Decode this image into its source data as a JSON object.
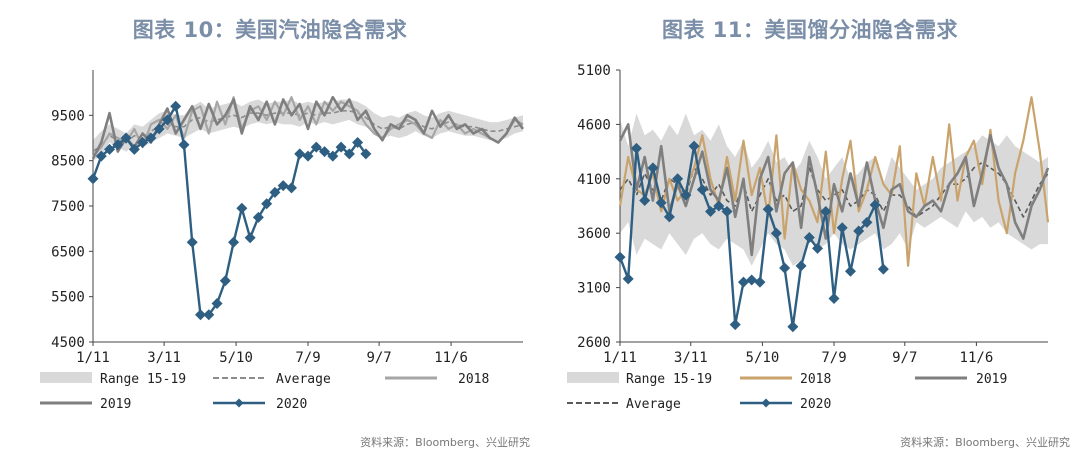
{
  "charts": [
    {
      "title": "图表 10：美国汽油隐含需求",
      "source": "资料来源：Bloomberg、兴业研究",
      "chart_data": {
        "type": "line",
        "title": "图表 10：美国汽油隐含需求",
        "ylim": [
          4500,
          10500
        ],
        "yticks": [
          "9500",
          "8500",
          "7500",
          "6500",
          "5500",
          "4500"
        ],
        "ytick_values": [
          9500,
          8500,
          7500,
          6500,
          5500,
          4500
        ],
        "xticks": [
          "1/11",
          "3/11",
          "5/10",
          "7/9",
          "9/7",
          "11/6"
        ],
        "xtick_weeks": [
          1,
          9.6,
          18.3,
          27,
          35.6,
          44.3
        ],
        "weeks": 53,
        "legend": {
          "range": "Range 15-19",
          "average": "Average",
          "y2018": "2018",
          "y2019": "2019",
          "y2020": "2020"
        },
        "colors": {
          "range": "#d9d9d9",
          "average": "#8c8c8c",
          "y2018": "#a6a6a6",
          "y2019": "#7f7f7f",
          "y2020": "#2e5f82"
        },
        "band_low": [
          8500,
          8600,
          8900,
          8800,
          8700,
          8850,
          8800,
          8900,
          9000,
          9100,
          9050,
          9000,
          9100,
          9200,
          9100,
          9150,
          9200,
          9250,
          9200,
          9300,
          9350,
          9300,
          9350,
          9300,
          9300,
          9250,
          9350,
          9300,
          9350,
          9300,
          9350,
          9400,
          9300,
          9250,
          9100,
          9000,
          9050,
          9000,
          9050,
          9150,
          9050,
          9000,
          9100,
          9150,
          9100,
          9050,
          9050,
          9000,
          8950,
          8950,
          9000,
          9100,
          9150
        ],
        "band_high": [
          8950,
          9150,
          9300,
          9200,
          9100,
          9300,
          9250,
          9400,
          9550,
          9600,
          9500,
          9500,
          9700,
          9800,
          9650,
          9700,
          9750,
          9800,
          9700,
          9800,
          9850,
          9750,
          9800,
          9800,
          9850,
          9750,
          9800,
          9750,
          9800,
          9800,
          9850,
          9850,
          9800,
          9700,
          9550,
          9450,
          9500,
          9450,
          9550,
          9600,
          9500,
          9450,
          9550,
          9600,
          9550,
          9500,
          9450,
          9400,
          9350,
          9350,
          9400,
          9450,
          9500
        ],
        "average": [
          8700,
          8850,
          9050,
          8950,
          8900,
          9050,
          9000,
          9150,
          9250,
          9300,
          9250,
          9250,
          9400,
          9450,
          9350,
          9400,
          9450,
          9500,
          9450,
          9550,
          9550,
          9500,
          9550,
          9550,
          9550,
          9500,
          9550,
          9500,
          9550,
          9550,
          9600,
          9600,
          9550,
          9450,
          9300,
          9200,
          9250,
          9200,
          9300,
          9350,
          9250,
          9200,
          9300,
          9350,
          9300,
          9250,
          9250,
          9200,
          9150,
          9150,
          9200,
          9250,
          9300
        ],
        "series_2018": [
          8600,
          8800,
          9100,
          9000,
          8900,
          9200,
          8800,
          9300,
          9400,
          9200,
          9500,
          9000,
          9600,
          9700,
          9100,
          9800,
          9300,
          9900,
          9200,
          9600,
          9700,
          9400,
          9800,
          9500,
          9900,
          9400,
          9700,
          9300,
          9800,
          9600,
          9800,
          9700,
          9600,
          9300,
          9100,
          9000,
          9200,
          9300,
          9400,
          9300,
          9100,
          9000,
          9400,
          9200,
          9300,
          9100,
          9200,
          9100,
          9000,
          8900,
          9100,
          9400,
          9300
        ],
        "series_2019": [
          8550,
          8900,
          9550,
          8700,
          9000,
          8800,
          9100,
          8900,
          9300,
          9650,
          9100,
          9400,
          9700,
          9200,
          9750,
          9300,
          9500,
          9850,
          9100,
          9700,
          9400,
          9800,
          9300,
          9850,
          9500,
          9750,
          9200,
          9800,
          9500,
          9900,
          9600,
          9850,
          9400,
          9600,
          9200,
          8950,
          9300,
          9200,
          9500,
          9400,
          9100,
          9600,
          9250,
          9500,
          9200,
          9300,
          9100,
          9200,
          9000,
          8900,
          9100,
          9450,
          9200
        ],
        "series_2020": [
          8100,
          8600,
          8750,
          8850,
          9000,
          8750,
          8900,
          9000,
          9200,
          9400,
          9700,
          8850,
          6700,
          5100,
          5100,
          5350,
          5850,
          6700,
          7450,
          6800,
          7250,
          7550,
          7800,
          7950,
          7900,
          8650,
          8600,
          8800,
          8700,
          8600,
          8800,
          8650,
          8900,
          8650
        ]
      }
    },
    {
      "title": "图表 11：美国馏分油隐含需求",
      "source": "资料来源：Bloomberg、兴业研究",
      "chart_data": {
        "type": "line",
        "title": "图表 11：美国馏分油隐含需求",
        "ylim": [
          2600,
          5100
        ],
        "yticks": [
          "5100",
          "4600",
          "4100",
          "3600",
          "3100",
          "2600"
        ],
        "ytick_values": [
          5100,
          4600,
          4100,
          3600,
          3100,
          2600
        ],
        "xticks": [
          "1/11",
          "3/11",
          "5/10",
          "7/9",
          "9/7",
          "11/6"
        ],
        "xtick_weeks": [
          1,
          9.6,
          18.3,
          27,
          35.6,
          44.3
        ],
        "weeks": 53,
        "legend": {
          "range": "Range 15-19",
          "y2018": "2018",
          "y2019": "2019",
          "average": "Average",
          "y2020": "2020"
        },
        "colors": {
          "range": "#d9d9d9",
          "average": "#595959",
          "y2018": "#c9a36b",
          "y2019": "#7f7f7f",
          "y2020": "#2e5f82"
        },
        "band_low": [
          3600,
          3700,
          3400,
          3550,
          3500,
          3450,
          3600,
          3500,
          3400,
          3550,
          3600,
          3500,
          3450,
          3550,
          3500,
          3450,
          3300,
          3450,
          3600,
          3500,
          3450,
          3300,
          3350,
          3550,
          3450,
          3500,
          3600,
          3500,
          3450,
          3500,
          3550,
          3600,
          3450,
          3500,
          3600,
          3450,
          3700,
          3650,
          3700,
          3750,
          3700,
          3650,
          3800,
          3700,
          3750,
          3650,
          3700,
          3600,
          3550,
          3500,
          3450,
          3500,
          3500
        ],
        "band_high": [
          4650,
          4400,
          4700,
          4500,
          4550,
          4450,
          4600,
          4500,
          4700,
          4500,
          4550,
          4450,
          4600,
          4400,
          4300,
          4450,
          4200,
          4300,
          4450,
          4250,
          4300,
          4150,
          4250,
          4450,
          4300,
          4100,
          4200,
          4300,
          4100,
          4150,
          4250,
          4300,
          4050,
          4300,
          4200,
          4100,
          4000,
          4050,
          4100,
          4200,
          4250,
          4300,
          4350,
          4400,
          4500,
          4450,
          4400,
          4500,
          4400,
          4350,
          4300,
          4250,
          4300
        ],
        "average": [
          4000,
          4100,
          3950,
          4150,
          4000,
          3900,
          4100,
          4050,
          3950,
          4200,
          4100,
          3950,
          4050,
          3900,
          3850,
          4050,
          3800,
          3950,
          4100,
          3900,
          3950,
          3800,
          3850,
          4200,
          4000,
          3900,
          3950,
          4000,
          3850,
          3900,
          4000,
          3950,
          3800,
          3950,
          3950,
          3850,
          3750,
          3800,
          3850,
          3950,
          4050,
          4050,
          4100,
          4200,
          4250,
          4200,
          4150,
          4050,
          3900,
          3750,
          3900,
          4050,
          4150
        ],
        "series_2018": [
          3850,
          4300,
          4000,
          3950,
          4150,
          3800,
          4100,
          3900,
          4000,
          4200,
          4500,
          4100,
          3850,
          4300,
          3900,
          4450,
          3950,
          4200,
          3750,
          4500,
          3550,
          4250,
          4000,
          3900,
          3700,
          4350,
          3600,
          4100,
          4450,
          3800,
          4000,
          4300,
          4050,
          3950,
          4400,
          3300,
          4150,
          3850,
          4300,
          3900,
          4600,
          3900,
          4300,
          4450,
          4050,
          4550,
          3900,
          3600,
          4150,
          4450,
          4850,
          4350,
          3700
        ],
        "series_2019": [
          4450,
          4600,
          4000,
          4300,
          3900,
          4400,
          3800,
          4050,
          3850,
          4100,
          4350,
          4000,
          3900,
          4200,
          3750,
          4100,
          3400,
          4100,
          4300,
          3800,
          4150,
          4250,
          3650,
          4300,
          3950,
          3550,
          4050,
          3800,
          4150,
          3850,
          4250,
          3900,
          3650,
          4000,
          4050,
          3800,
          3750,
          3850,
          3900,
          3800,
          4050,
          4150,
          4300,
          3850,
          4150,
          4500,
          4200,
          4050,
          3700,
          3550,
          3850,
          4000,
          4200
        ],
        "series_2020": [
          3380,
          3180,
          4380,
          3900,
          4200,
          3880,
          3750,
          4100,
          3950,
          4400,
          4000,
          3800,
          3850,
          3800,
          2760,
          3150,
          3170,
          3150,
          3820,
          3600,
          3280,
          2740,
          3300,
          3560,
          3460,
          3800,
          3000,
          3650,
          3250,
          3620,
          3700,
          3860,
          3270
        ]
      }
    }
  ]
}
